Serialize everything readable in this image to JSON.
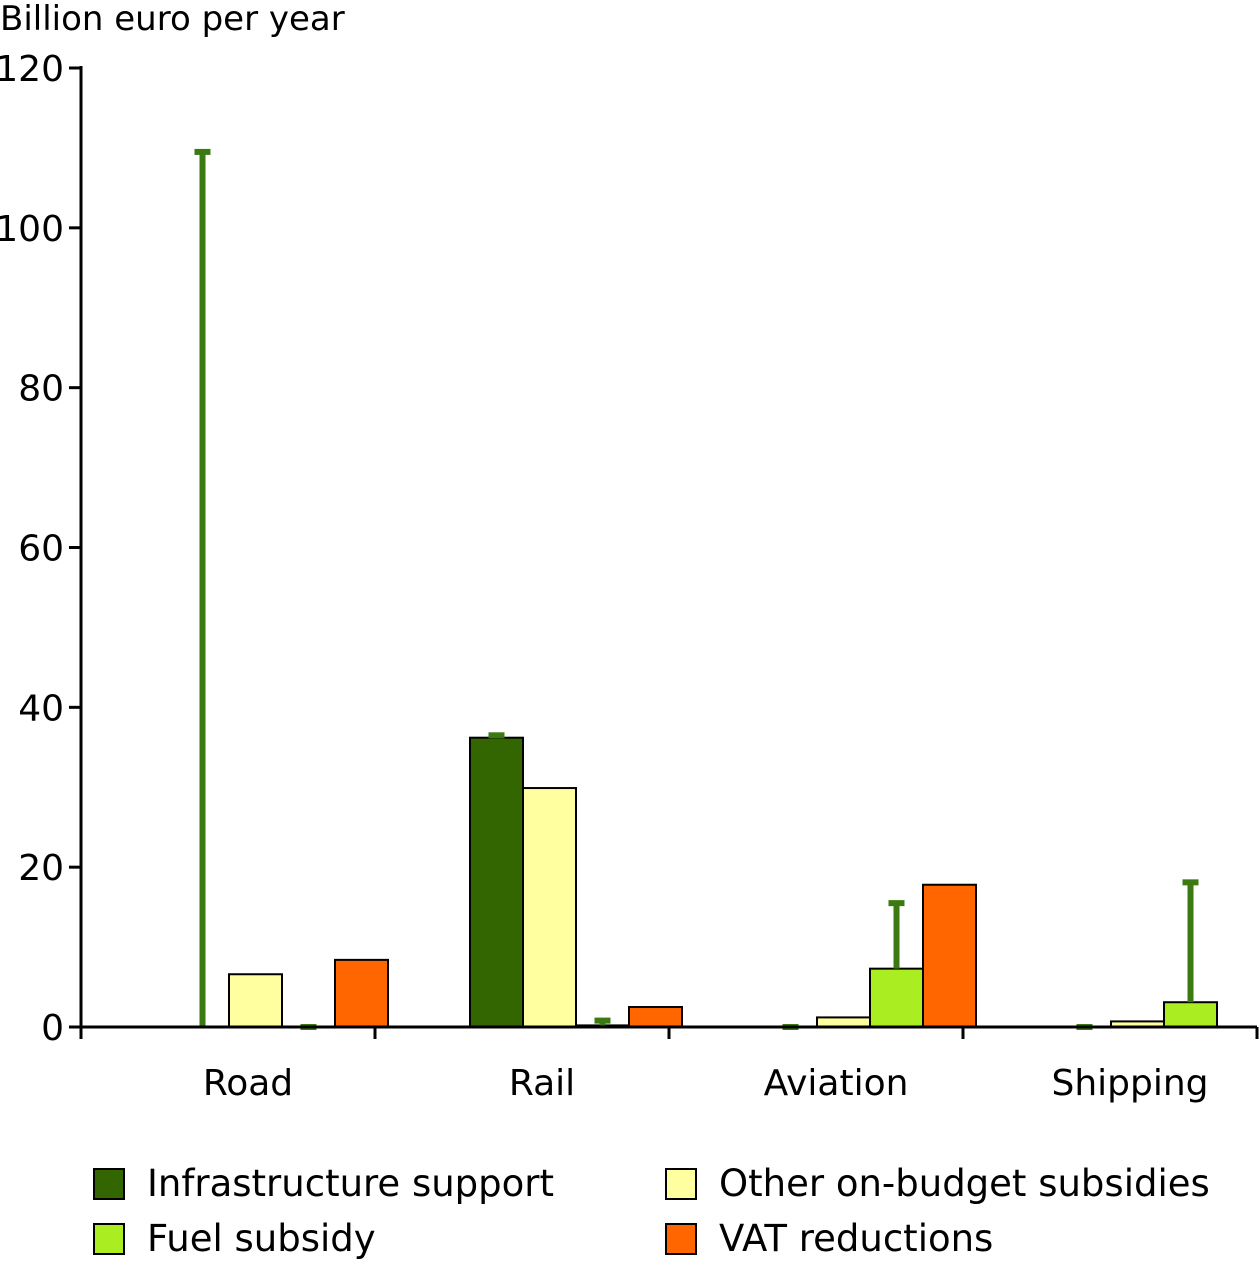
{
  "chart_data": {
    "type": "bar",
    "ylabel": "Billion euro per year",
    "ylim": [
      0,
      120
    ],
    "yticks": [
      0,
      20,
      40,
      60,
      80,
      100,
      120
    ],
    "categories": [
      "Road",
      "Rail",
      "Aviation",
      "Shipping"
    ],
    "series": [
      {
        "name": "Infrastructure support",
        "color": "#336600",
        "values": [
          0,
          36.2,
          0,
          0
        ],
        "upper": [
          109.5,
          36.5,
          0,
          0
        ]
      },
      {
        "name": "Other on-budget subsidies",
        "color": "#ffffa0",
        "values": [
          6.6,
          29.9,
          1.2,
          0.7
        ],
        "upper": [
          null,
          null,
          null,
          null
        ]
      },
      {
        "name": "Fuel subsidy",
        "color": "#aaee22",
        "values": [
          0,
          0.2,
          7.3,
          3.1
        ],
        "upper": [
          0,
          0.8,
          15.5,
          18.1
        ]
      },
      {
        "name": "VAT reductions",
        "color": "#ff6600",
        "values": [
          8.4,
          2.5,
          17.8,
          0
        ],
        "upper": [
          null,
          null,
          null,
          null
        ]
      }
    ],
    "error_color": "#3a7a10",
    "grid": false,
    "legend_position": "bottom"
  }
}
